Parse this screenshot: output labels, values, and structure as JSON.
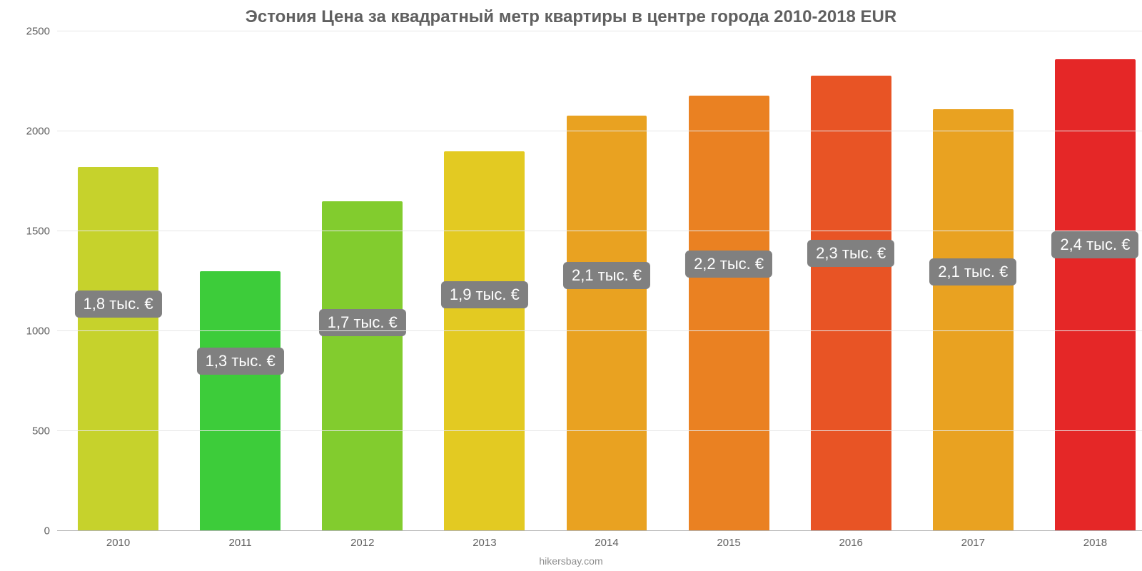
{
  "chart": {
    "type": "bar",
    "title": "Эстония Цена за квадратный метр квартиры в центре города 2010-2018 EUR",
    "title_fontsize": 24,
    "title_color": "#606060",
    "attribution": "hikersbay.com",
    "attribution_fontsize": 14,
    "attribution_color": "#8e8e8e",
    "background_color": "#ffffff",
    "grid_color": "#e6e6e6",
    "axis_color": "#b3b3b3",
    "ylim": [
      0,
      2500
    ],
    "ytick_step": 500,
    "yticks": [
      0,
      500,
      1000,
      1500,
      2000,
      2500
    ],
    "ylabel_fontsize": 15,
    "ylabel_color": "#606060",
    "xlabel_fontsize": 15,
    "xlabel_color": "#606060",
    "bar_width": 0.66,
    "categories": [
      "2010",
      "2011",
      "2012",
      "2013",
      "2014",
      "2015",
      "2016",
      "2017",
      "2018"
    ],
    "values": [
      1820,
      1300,
      1650,
      1900,
      2080,
      2180,
      2280,
      2110,
      2360
    ],
    "value_labels": [
      "1,8 тыс. €",
      "1,3 тыс. €",
      "1,7 тыс. €",
      "1,9 тыс. €",
      "2,1 тыс. €",
      "2,2 тыс. €",
      "2,3 тыс. €",
      "2,1 тыс. €",
      "2,4 тыс. €"
    ],
    "bar_colors": [
      "#c6d22c",
      "#3dcc3a",
      "#82cc2e",
      "#e3ca22",
      "#e9a221",
      "#ea8122",
      "#e85425",
      "#e9a221",
      "#e52727"
    ],
    "value_label_bg": "#808080",
    "value_label_color": "#ffffff",
    "value_label_fontsize": 22,
    "value_label_radius": 6
  }
}
